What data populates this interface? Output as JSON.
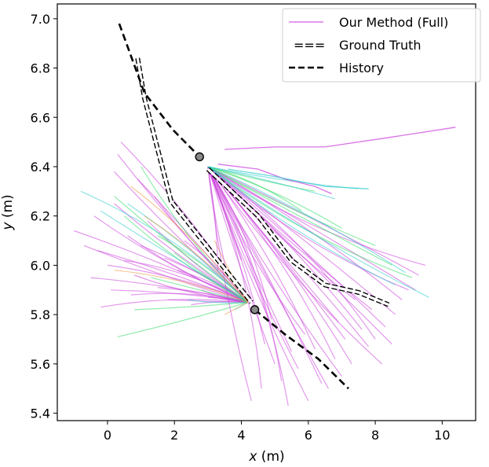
{
  "chart_data": {
    "type": "line",
    "xlabel_var": "x",
    "xlabel_unit": " (m)",
    "ylabel_var": "y",
    "ylabel_unit": " (m)",
    "xlim": [
      -1.5,
      11.0
    ],
    "ylim": [
      5.37,
      7.06
    ],
    "xticks": [
      0,
      2,
      4,
      6,
      8,
      10
    ],
    "yticks": [
      5.4,
      5.6,
      5.8,
      6.0,
      6.2,
      6.4,
      6.6,
      6.8,
      7.0
    ],
    "xtick_labels": [
      "0",
      "2",
      "4",
      "6",
      "8",
      "10"
    ],
    "ytick_labels": [
      "5.4",
      "5.6",
      "5.8",
      "6.0",
      "6.2",
      "6.4",
      "6.6",
      "6.8",
      "7.0"
    ],
    "legend_position": "top-right",
    "legend": {
      "method_label": "Our Method (Full)",
      "gt_marker": "===",
      "gt_label": "Ground Truth",
      "history_label": "History"
    },
    "colors": {
      "method": "#cc44dd",
      "green": "#33dd66",
      "teal": "#33cccc",
      "orange": "#ee9944",
      "black": "#000000",
      "marker": "#888888"
    },
    "agents": [
      {
        "name": "agent-1",
        "history": [
          [
            0.35,
            6.98
          ],
          [
            1.1,
            6.7
          ],
          [
            1.95,
            6.55
          ],
          [
            2.75,
            6.44
          ]
        ],
        "current": [
          2.75,
          6.44
        ],
        "ground_truth": [
          [
            0.9,
            6.84
          ],
          [
            1.1,
            6.68
          ],
          [
            1.9,
            6.26
          ],
          [
            4.3,
            5.85
          ]
        ],
        "fan_origin": [
          4.2,
          5.85
        ],
        "fan_endpoints_pink": [
          [
            -1.0,
            6.14
          ],
          [
            0.2,
            6.25
          ],
          [
            -0.3,
            6.06
          ],
          [
            0.5,
            6.02
          ],
          [
            -0.5,
            5.95
          ],
          [
            0.1,
            5.9
          ],
          [
            0.8,
            5.96
          ],
          [
            -0.2,
            5.83
          ],
          [
            1.5,
            5.91
          ],
          [
            2.5,
            5.84
          ],
          [
            1.0,
            6.08
          ],
          [
            0.3,
            6.45
          ],
          [
            0.4,
            6.5
          ],
          [
            0.6,
            6.12
          ],
          [
            0.9,
            6.35
          ],
          [
            1.2,
            6.18
          ],
          [
            -0.4,
            6.2
          ],
          [
            1.7,
            6.03
          ],
          [
            2.1,
            5.98
          ],
          [
            0.0,
            6.0
          ],
          [
            2.8,
            5.9
          ],
          [
            1.8,
            5.86
          ],
          [
            3.0,
            5.87
          ],
          [
            0.2,
            6.38
          ],
          [
            1.4,
            6.28
          ],
          [
            -0.7,
            6.08
          ],
          [
            0.7,
            5.88
          ],
          [
            2.3,
            6.1
          ]
        ],
        "fan_endpoints_green": [
          [
            0.3,
            5.71
          ],
          [
            0.8,
            5.82
          ],
          [
            1.5,
            6.12
          ],
          [
            0.5,
            6.2
          ],
          [
            1.0,
            6.4
          ],
          [
            2.0,
            6.05
          ],
          [
            0.2,
            6.28
          ],
          [
            1.3,
            5.95
          ]
        ],
        "fan_endpoints_teal": [
          [
            -0.8,
            6.3
          ],
          [
            -0.2,
            6.22
          ],
          [
            0.6,
            6.25
          ],
          [
            2.4,
            5.86
          ],
          [
            3.8,
            5.82
          ]
        ],
        "fan_endpoints_orange": [
          [
            0.2,
            5.98
          ],
          [
            1.1,
            6.2
          ],
          [
            3.2,
            6.1
          ],
          [
            3.5,
            5.8
          ],
          [
            0.7,
            6.32
          ]
        ]
      },
      {
        "name": "agent-2",
        "history": [
          [
            4.4,
            5.82
          ],
          [
            5.3,
            5.72
          ],
          [
            6.3,
            5.62
          ],
          [
            7.2,
            5.5
          ]
        ],
        "current": [
          4.4,
          5.82
        ],
        "ground_truth": [
          [
            3.0,
            6.39
          ],
          [
            4.5,
            6.2
          ],
          [
            5.5,
            6.02
          ],
          [
            6.5,
            5.92
          ],
          [
            7.5,
            5.89
          ],
          [
            8.4,
            5.84
          ]
        ],
        "fan_origin": [
          3.0,
          6.4
        ],
        "fan_endpoints_pink": [
          [
            4.3,
            5.45
          ],
          [
            4.6,
            5.5
          ],
          [
            5.0,
            5.6
          ],
          [
            5.4,
            5.43
          ],
          [
            6.0,
            5.45
          ],
          [
            6.4,
            5.52
          ],
          [
            7.0,
            5.55
          ],
          [
            7.3,
            5.6
          ],
          [
            7.8,
            5.67
          ],
          [
            8.3,
            5.75
          ],
          [
            8.6,
            5.8
          ],
          [
            9.0,
            5.9
          ],
          [
            9.3,
            5.96
          ],
          [
            8.0,
            5.7
          ],
          [
            7.6,
            5.74
          ],
          [
            6.8,
            5.62
          ],
          [
            5.7,
            5.58
          ],
          [
            5.2,
            5.53
          ],
          [
            4.7,
            5.68
          ],
          [
            8.8,
            5.86
          ],
          [
            7.1,
            5.7
          ],
          [
            6.2,
            5.66
          ],
          [
            8.2,
            5.6
          ],
          [
            9.2,
            5.9
          ],
          [
            6.6,
            5.5
          ],
          [
            5.9,
            5.72
          ],
          [
            7.9,
            5.82
          ],
          [
            7.4,
            5.86
          ],
          [
            4.9,
            5.78
          ],
          [
            5.5,
            5.65
          ],
          [
            8.5,
            5.68
          ],
          [
            6.9,
            5.77
          ],
          [
            3.6,
            5.95
          ],
          [
            3.3,
            5.98
          ],
          [
            4.0,
            6.02
          ],
          [
            9.5,
            6.0
          ]
        ],
        "fan_endpoints_green": [
          [
            7.0,
            6.15
          ],
          [
            8.5,
            6.0
          ],
          [
            9.1,
            5.95
          ],
          [
            6.2,
            6.3
          ],
          [
            5.8,
            6.22
          ],
          [
            8.0,
            6.08
          ]
        ],
        "fan_endpoints_teal": [
          [
            7.5,
            6.31
          ],
          [
            6.8,
            6.27
          ],
          [
            8.6,
            5.92
          ],
          [
            9.6,
            5.87
          ],
          [
            8.9,
            5.97
          ]
        ],
        "fan_endpoints_orange": []
      }
    ],
    "long_curves": [
      {
        "color": "method",
        "points": [
          [
            3.5,
            6.47
          ],
          [
            5.0,
            6.48
          ],
          [
            6.5,
            6.48
          ],
          [
            8.5,
            6.52
          ],
          [
            10.4,
            6.56
          ]
        ]
      },
      {
        "color": "method",
        "points": [
          [
            3.3,
            6.41
          ],
          [
            4.5,
            6.39
          ],
          [
            5.3,
            6.35
          ],
          [
            6.2,
            6.32
          ],
          [
            6.7,
            6.29
          ]
        ]
      },
      {
        "color": "teal",
        "points": [
          [
            3.6,
            6.39
          ],
          [
            5.0,
            6.36
          ],
          [
            6.5,
            6.32
          ],
          [
            7.8,
            6.31
          ]
        ]
      }
    ]
  }
}
